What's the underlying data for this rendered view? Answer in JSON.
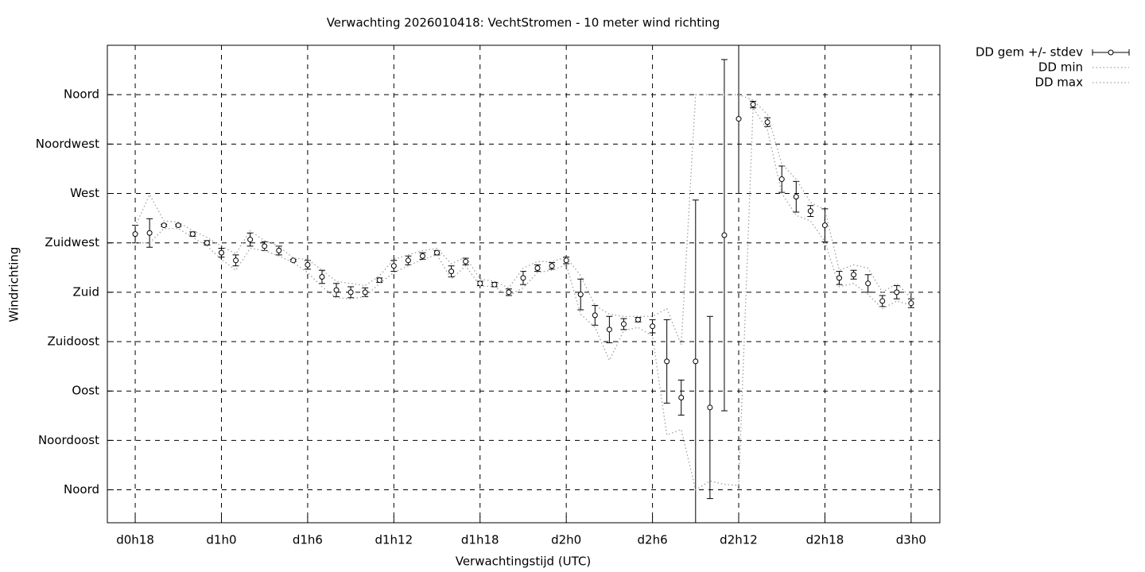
{
  "chart_data": {
    "type": "errorbar",
    "title": "Verwachting 2026010418: VechtStromen - 10 meter wind richting",
    "x_label": "Verwachtingstijd (UTC)",
    "y_label": "Windrichting",
    "xlim": [
      16.06,
      74
    ],
    "ylim": [
      -30,
      405
    ],
    "grid": true,
    "legend": "outside-top-right",
    "xticks": [
      {
        "value": 18,
        "label": "d0h18"
      },
      {
        "value": 24,
        "label": "d1h0"
      },
      {
        "value": 30,
        "label": "d1h6"
      },
      {
        "value": 36,
        "label": "d1h12"
      },
      {
        "value": 42,
        "label": "d1h18"
      },
      {
        "value": 48,
        "label": "d2h0"
      },
      {
        "value": 54,
        "label": "d2h6"
      },
      {
        "value": 60,
        "label": "d2h12"
      },
      {
        "value": 66,
        "label": "d2h18"
      },
      {
        "value": 72,
        "label": "d3h0"
      }
    ],
    "yticks": [
      {
        "value": 0,
        "label": "Noord"
      },
      {
        "value": 45,
        "label": "Noordoost"
      },
      {
        "value": 90,
        "label": "Oost"
      },
      {
        "value": 135,
        "label": "Zuidoost"
      },
      {
        "value": 180,
        "label": "Zuid"
      },
      {
        "value": 225,
        "label": "Zuidwest"
      },
      {
        "value": 270,
        "label": "West"
      },
      {
        "value": 315,
        "label": "Noordwest"
      },
      {
        "value": 360,
        "label": "Noord"
      }
    ],
    "x": [
      18,
      19,
      20,
      21,
      22,
      23,
      24,
      25,
      26,
      27,
      28,
      29,
      30,
      31,
      32,
      33,
      34,
      35,
      36,
      37,
      38,
      39,
      40,
      41,
      42,
      43,
      44,
      45,
      46,
      47,
      48,
      49,
      50,
      51,
      52,
      53,
      54,
      55,
      56,
      57,
      58,
      59,
      60,
      61,
      62,
      63,
      64,
      65,
      66,
      67,
      68,
      69,
      70,
      71,
      72
    ],
    "series": [
      {
        "name": "DD gem +/- stdev",
        "color": "#000000",
        "values": [
          233,
          234,
          241,
          241,
          233,
          225,
          216,
          209,
          228,
          222,
          218,
          209,
          205,
          194,
          182,
          180,
          180,
          191,
          204,
          209,
          213,
          216,
          199,
          208,
          188,
          187,
          180,
          193,
          202,
          204,
          209,
          178,
          159,
          146,
          151,
          155,
          149,
          117,
          84,
          117,
          75,
          232,
          338,
          351,
          335,
          283,
          267,
          254,
          241,
          193,
          196,
          188,
          172,
          180,
          170
        ],
        "errors": [
          8,
          13,
          1,
          1,
          2,
          2,
          4,
          5,
          6,
          4,
          4,
          1,
          4,
          6,
          6,
          5,
          4,
          2,
          5,
          4,
          3,
          2,
          5,
          3,
          2,
          2,
          3,
          6,
          3,
          3,
          3,
          14,
          9,
          12,
          5,
          2,
          6,
          38,
          16,
          147,
          83,
          160,
          68,
          3,
          4,
          12,
          14,
          5,
          15,
          6,
          4,
          8,
          5,
          6,
          4
        ]
      },
      {
        "name": "DD min",
        "color": "#a0a0a0",
        "values": [
          225,
          225,
          238,
          238,
          230,
          222,
          210,
          200,
          220,
          218,
          213,
          207,
          198,
          185,
          175,
          174,
          176,
          188,
          198,
          204,
          210,
          214,
          192,
          204,
          186,
          185,
          177,
          184,
          198,
          200,
          205,
          160,
          148,
          118,
          145,
          148,
          140,
          50,
          55,
          0,
          8,
          5,
          4,
          348,
          328,
          270,
          250,
          245,
          226,
          185,
          188,
          178,
          165,
          172,
          168
        ]
      },
      {
        "name": "DD max",
        "color": "#a0a0a0",
        "values": [
          240,
          269,
          245,
          244,
          236,
          230,
          222,
          215,
          236,
          227,
          222,
          211,
          210,
          200,
          190,
          188,
          186,
          195,
          210,
          214,
          218,
          220,
          206,
          212,
          192,
          190,
          184,
          202,
          208,
          208,
          212,
          195,
          168,
          160,
          158,
          158,
          158,
          165,
          132,
          360,
          360,
          360,
          360,
          355,
          342,
          297,
          283,
          262,
          255,
          200,
          205,
          202,
          180,
          188,
          175
        ]
      }
    ]
  }
}
